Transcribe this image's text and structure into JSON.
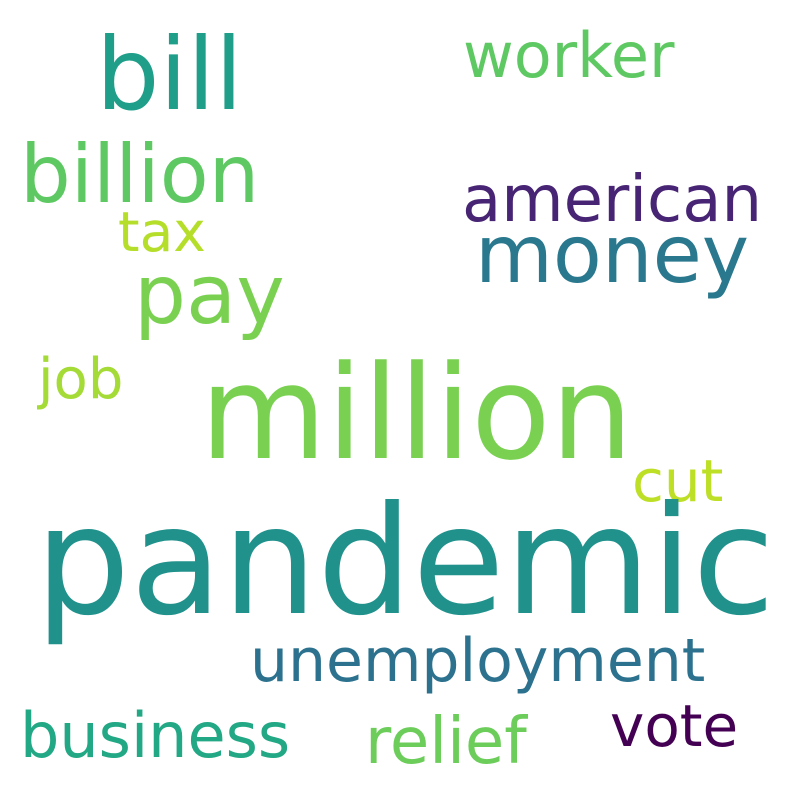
{
  "words": [
    {
      "id": "pandemic",
      "text": "pandemic",
      "color": "#21918c"
    },
    {
      "id": "million",
      "text": "million",
      "color": "#7ad151"
    },
    {
      "id": "bill",
      "text": "bill",
      "color": "#1f9e89"
    },
    {
      "id": "billion",
      "text": "billion",
      "color": "#5ec962"
    },
    {
      "id": "money",
      "text": "money",
      "color": "#2a788e"
    },
    {
      "id": "pay",
      "text": "pay",
      "color": "#7ad151"
    },
    {
      "id": "american",
      "text": "american",
      "color": "#482475"
    },
    {
      "id": "worker",
      "text": "worker",
      "color": "#5ec962"
    },
    {
      "id": "unemployment",
      "text": "unemployment",
      "color": "#2c728e"
    },
    {
      "id": "business",
      "text": "business",
      "color": "#22a884"
    },
    {
      "id": "relief",
      "text": "relief",
      "color": "#6ccd5a"
    },
    {
      "id": "vote",
      "text": "vote",
      "color": "#440154"
    },
    {
      "id": "cut",
      "text": "cut",
      "color": "#bddf26"
    },
    {
      "id": "job",
      "text": "job",
      "color": "#a5db36"
    },
    {
      "id": "tax",
      "text": "tax",
      "color": "#b5de2b"
    }
  ]
}
